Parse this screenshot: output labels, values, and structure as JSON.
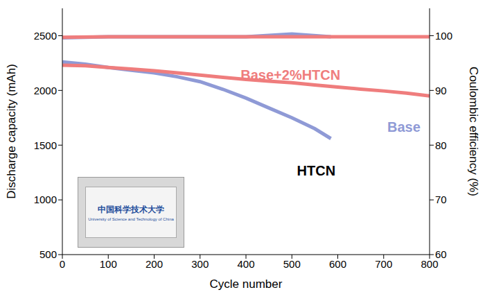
{
  "chart_data": {
    "type": "line",
    "x_label": "Cycle number",
    "y_label": "Discharge capacity (mAh)",
    "y2_label": "Coulombic efficiency (%)",
    "xlim": [
      0,
      800
    ],
    "xticks": [
      0,
      100,
      200,
      300,
      400,
      500,
      600,
      700,
      800
    ],
    "ylim": [
      500,
      2750
    ],
    "yticks": [
      500,
      1000,
      1500,
      2000,
      2500
    ],
    "y2lim": [
      60,
      105
    ],
    "y2ticks": [
      60,
      70,
      80,
      90,
      100
    ],
    "series": [
      {
        "name": "Base",
        "color": "#8f9ad6",
        "x": [
          0,
          50,
          100,
          150,
          200,
          250,
          300,
          350,
          400,
          450,
          500,
          550,
          585
        ],
        "values": [
          2260,
          2240,
          2210,
          2185,
          2160,
          2125,
          2080,
          2010,
          1930,
          1840,
          1750,
          1650,
          1560
        ]
      },
      {
        "name": "Base+2%HTCN",
        "color": "#ef7d7d",
        "x": [
          0,
          50,
          100,
          150,
          200,
          250,
          300,
          350,
          400,
          450,
          500,
          550,
          600,
          650,
          700,
          750,
          800
        ],
        "values": [
          2230,
          2225,
          2210,
          2195,
          2180,
          2160,
          2140,
          2120,
          2100,
          2085,
          2070,
          2050,
          2030,
          2012,
          1995,
          1975,
          1950
        ]
      },
      {
        "name": "Base",
        "color": "#8f9ad6",
        "axis": "y2",
        "x": [
          0,
          100,
          200,
          300,
          400,
          500,
          585
        ],
        "values": [
          99.6,
          99.8,
          99.8,
          99.8,
          99.8,
          100.3,
          99.8
        ]
      },
      {
        "name": "Base+2%HTCN",
        "color": "#ef7d7d",
        "axis": "y2",
        "x": [
          0,
          100,
          200,
          300,
          400,
          500,
          600,
          700,
          800
        ],
        "values": [
          99.7,
          99.8,
          99.8,
          99.8,
          99.8,
          99.8,
          99.8,
          99.8,
          99.8
        ]
      }
    ],
    "annotations": [
      {
        "text": "Base+2%HTCN",
        "x": 497,
        "y": 2140,
        "color": "#ef7d7d"
      },
      {
        "text": "Base",
        "x": 744,
        "y": 1665,
        "color": "#8f9ad6"
      },
      {
        "text": "HTCN",
        "x": 553,
        "y": 1268,
        "color": "#000000"
      }
    ],
    "inset_texts": [
      "中国科学技术大学",
      "University of Science and Technology of China"
    ]
  }
}
